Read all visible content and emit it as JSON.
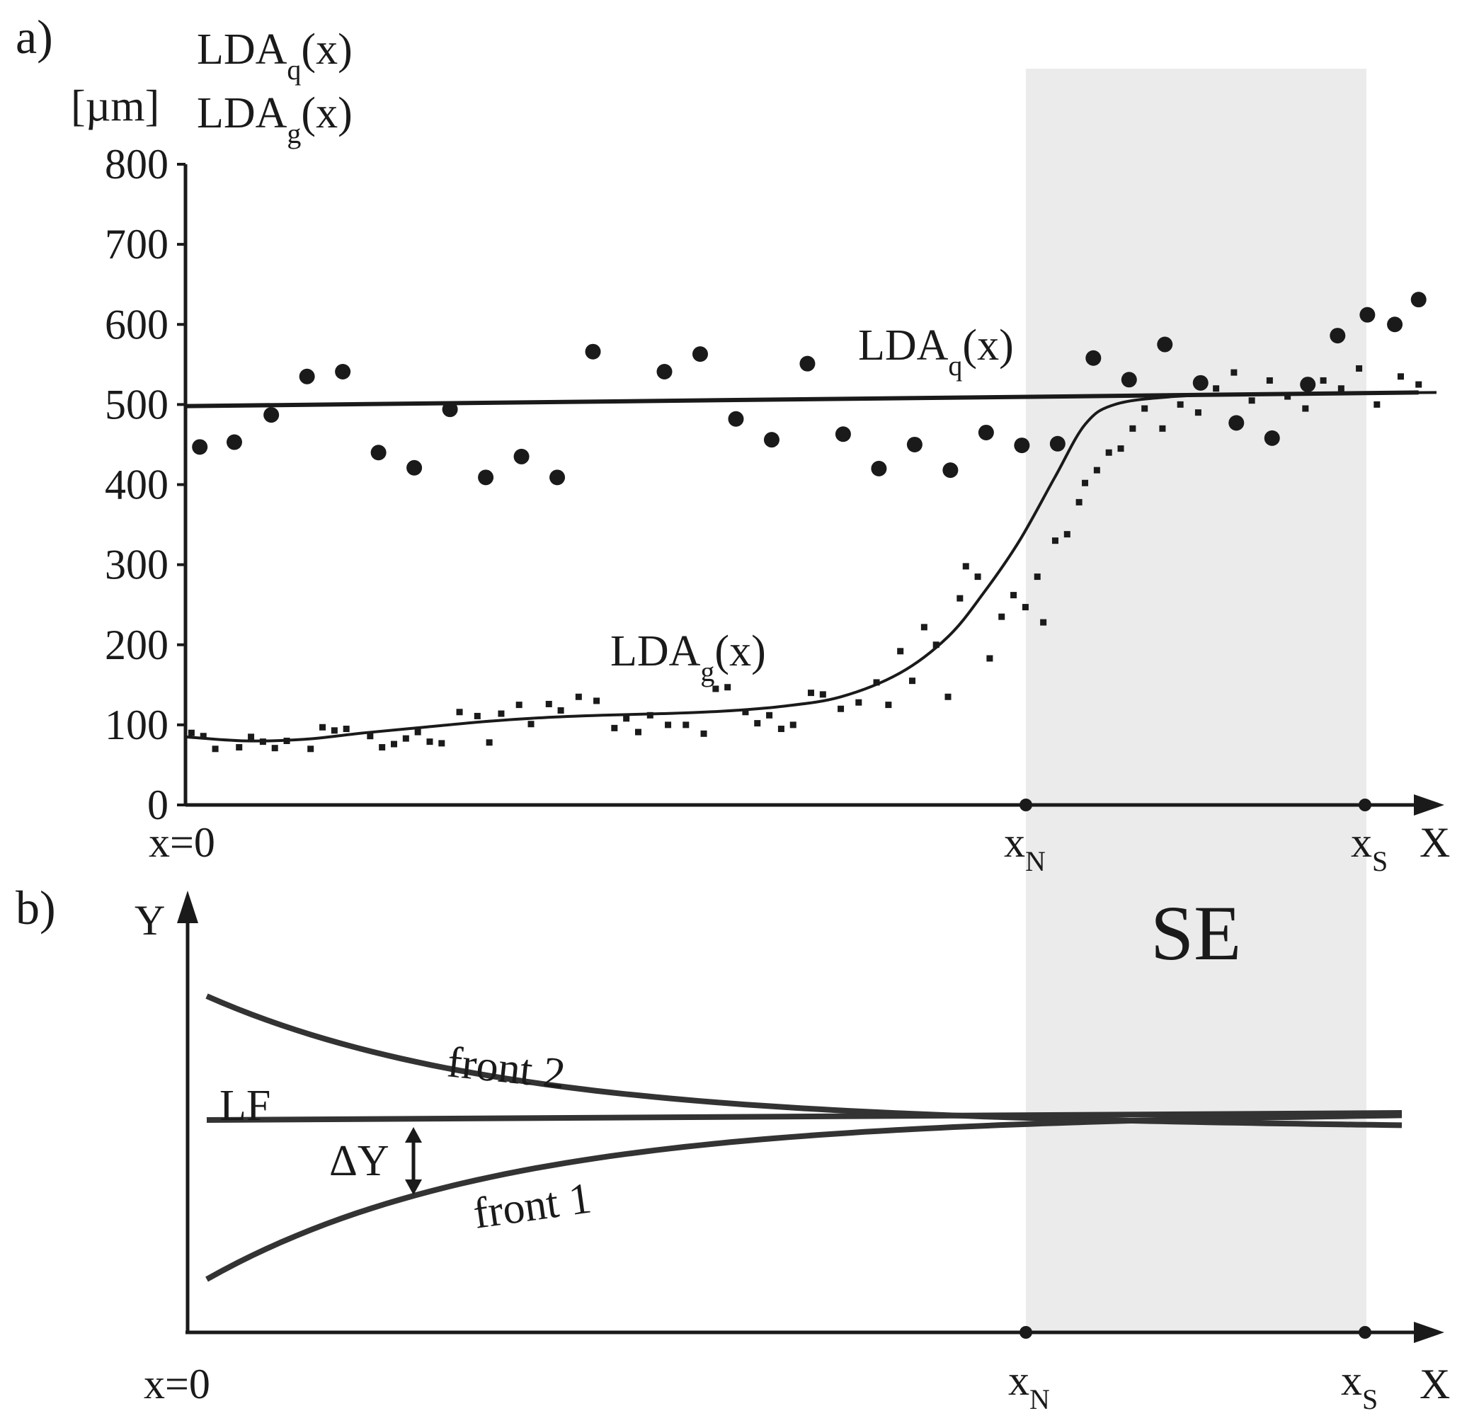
{
  "figure": {
    "panel_a_label": "a)",
    "panel_b_label": "b)",
    "region_label": "SE",
    "region_color": "#ebebeb",
    "ink_color": "#1a1a1a",
    "curve_color": "#333333"
  },
  "chart_data": [
    {
      "type": "scatter",
      "panel": "a)",
      "unit_label": "[µm]",
      "ylabel_lines": [
        {
          "main": "LDA",
          "sub": "q",
          "tail": "(x)"
        },
        {
          "main": "LDA",
          "sub": "g",
          "tail": "(x)"
        }
      ],
      "ylim": [
        0,
        800
      ],
      "yticks": [
        0,
        100,
        200,
        300,
        400,
        500,
        600,
        700,
        800
      ],
      "xlim": [
        0,
        1
      ],
      "x_axis_name": "X",
      "x_ticks": [
        {
          "x": 0,
          "main": "x=0",
          "sub": ""
        },
        {
          "x": 0.7,
          "main": "x",
          "sub": "N"
        },
        {
          "x": 0.99,
          "main": "x",
          "sub": "S"
        }
      ],
      "shaded_region": {
        "label": "SE",
        "x_from": 0.7,
        "x_to": 0.99
      },
      "grid": false,
      "legend": "none",
      "series": [
        {
          "name": "LDAq(x)",
          "label": {
            "main": "LDA",
            "sub": "q",
            "tail": "(x)"
          },
          "marker": "circle",
          "fit_start": 498,
          "fit_end": 515,
          "points": [
            [
              0.012,
              447
            ],
            [
              0.041,
              453
            ],
            [
              0.072,
              487
            ],
            [
              0.102,
              535
            ],
            [
              0.132,
              541
            ],
            [
              0.162,
              440
            ],
            [
              0.192,
              421
            ],
            [
              0.222,
              494
            ],
            [
              0.252,
              409
            ],
            [
              0.282,
              435
            ],
            [
              0.312,
              409
            ],
            [
              0.342,
              566
            ],
            [
              0.402,
              541
            ],
            [
              0.432,
              563
            ],
            [
              0.462,
              482
            ],
            [
              0.492,
              456
            ],
            [
              0.522,
              551
            ],
            [
              0.552,
              463
            ],
            [
              0.582,
              420
            ],
            [
              0.612,
              450
            ],
            [
              0.642,
              418
            ],
            [
              0.672,
              465
            ],
            [
              0.702,
              449
            ],
            [
              0.732,
              451
            ],
            [
              0.762,
              558
            ],
            [
              0.792,
              531
            ],
            [
              0.822,
              575
            ],
            [
              0.852,
              527
            ],
            [
              0.882,
              477
            ],
            [
              0.912,
              458
            ],
            [
              0.942,
              525
            ],
            [
              0.967,
              586
            ],
            [
              0.992,
              612
            ],
            [
              1.015,
              600
            ],
            [
              1.035,
              631
            ]
          ]
        },
        {
          "name": "LDAg(x)",
          "label": {
            "main": "LDA",
            "sub": "g",
            "tail": "(x)"
          },
          "marker": "square",
          "fit": [
            [
              0.0,
              85
            ],
            [
              0.05,
              80
            ],
            [
              0.1,
              82
            ],
            [
              0.15,
              90
            ],
            [
              0.2,
              97
            ],
            [
              0.25,
              104
            ],
            [
              0.3,
              109
            ],
            [
              0.35,
              112
            ],
            [
              0.4,
              114
            ],
            [
              0.45,
              117
            ],
            [
              0.5,
              123
            ],
            [
              0.55,
              135
            ],
            [
              0.6,
              165
            ],
            [
              0.64,
              210
            ],
            [
              0.67,
              265
            ],
            [
              0.7,
              330
            ],
            [
              0.73,
              410
            ],
            [
              0.755,
              475
            ],
            [
              0.78,
              500
            ],
            [
              0.83,
              510
            ],
            [
              0.9,
              513
            ],
            [
              1.05,
              515
            ]
          ],
          "points": [
            [
              0.005,
              90
            ],
            [
              0.015,
              86
            ],
            [
              0.025,
              70
            ],
            [
              0.045,
              72
            ],
            [
              0.055,
              85
            ],
            [
              0.065,
              79
            ],
            [
              0.075,
              71
            ],
            [
              0.085,
              80
            ],
            [
              0.105,
              70
            ],
            [
              0.115,
              97
            ],
            [
              0.125,
              93
            ],
            [
              0.135,
              95
            ],
            [
              0.155,
              86
            ],
            [
              0.165,
              72
            ],
            [
              0.175,
              76
            ],
            [
              0.185,
              83
            ],
            [
              0.195,
              91
            ],
            [
              0.205,
              79
            ],
            [
              0.215,
              77
            ],
            [
              0.23,
              116
            ],
            [
              0.245,
              111
            ],
            [
              0.255,
              78
            ],
            [
              0.265,
              114
            ],
            [
              0.28,
              125
            ],
            [
              0.29,
              101
            ],
            [
              0.305,
              126
            ],
            [
              0.315,
              118
            ],
            [
              0.33,
              135
            ],
            [
              0.345,
              130
            ],
            [
              0.36,
              96
            ],
            [
              0.37,
              108
            ],
            [
              0.38,
              91
            ],
            [
              0.39,
              112
            ],
            [
              0.405,
              100
            ],
            [
              0.42,
              100
            ],
            [
              0.435,
              89
            ],
            [
              0.445,
              145
            ],
            [
              0.455,
              147
            ],
            [
              0.47,
              116
            ],
            [
              0.48,
              102
            ],
            [
              0.49,
              112
            ],
            [
              0.5,
              95
            ],
            [
              0.51,
              100
            ],
            [
              0.525,
              140
            ],
            [
              0.535,
              138
            ],
            [
              0.55,
              120
            ],
            [
              0.565,
              128
            ],
            [
              0.58,
              153
            ],
            [
              0.59,
              125
            ],
            [
              0.6,
              192
            ],
            [
              0.61,
              155
            ],
            [
              0.62,
              222
            ],
            [
              0.63,
              200
            ],
            [
              0.64,
              135
            ],
            [
              0.65,
              258
            ],
            [
              0.655,
              298
            ],
            [
              0.665,
              285
            ],
            [
              0.675,
              183
            ],
            [
              0.685,
              235
            ],
            [
              0.695,
              262
            ],
            [
              0.705,
              247
            ],
            [
              0.715,
              285
            ],
            [
              0.72,
              228
            ],
            [
              0.73,
              330
            ],
            [
              0.74,
              338
            ],
            [
              0.75,
              378
            ],
            [
              0.755,
              402
            ],
            [
              0.765,
              418
            ],
            [
              0.775,
              440
            ],
            [
              0.785,
              445
            ],
            [
              0.795,
              470
            ],
            [
              0.805,
              495
            ],
            [
              0.82,
              470
            ],
            [
              0.835,
              500
            ],
            [
              0.85,
              490
            ],
            [
              0.865,
              520
            ],
            [
              0.88,
              540
            ],
            [
              0.895,
              505
            ],
            [
              0.91,
              530
            ],
            [
              0.925,
              510
            ],
            [
              0.94,
              495
            ],
            [
              0.955,
              530
            ],
            [
              0.97,
              520
            ],
            [
              0.985,
              545
            ],
            [
              1.0,
              500
            ],
            [
              1.02,
              535
            ],
            [
              1.035,
              525
            ]
          ]
        }
      ]
    },
    {
      "type": "line",
      "panel": "b)",
      "y_axis_name": "Y",
      "x_axis_name": "X",
      "x_ticks": [
        {
          "x": 0,
          "main": "x=0",
          "sub": ""
        },
        {
          "x": 0.7,
          "main": "x",
          "sub": "N"
        },
        {
          "x": 0.99,
          "main": "x",
          "sub": "S"
        }
      ],
      "shaded_region": {
        "label": "SE",
        "x_from": 0.7,
        "x_to": 0.99
      },
      "grid": false,
      "legend": "none",
      "annotation": "ΔY",
      "series": [
        {
          "name": "front 2",
          "shape": "decaying-above"
        },
        {
          "name": "LF",
          "shape": "baseline"
        },
        {
          "name": "front 1",
          "shape": "decaying-below"
        }
      ]
    }
  ]
}
